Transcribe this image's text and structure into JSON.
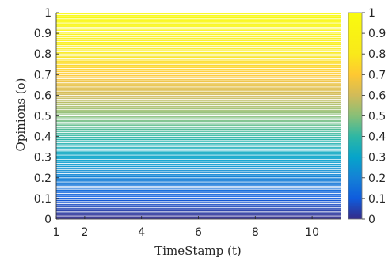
{
  "chart_data": {
    "type": "line",
    "title": "",
    "xlabel": "TimeStamp (t)",
    "ylabel": "Opinions (o)",
    "xlim": [
      1,
      11
    ],
    "ylim": [
      0,
      1
    ],
    "xticks": [
      1,
      2,
      4,
      6,
      8,
      10
    ],
    "yticks": [
      0,
      0.1,
      0.2,
      0.3,
      0.4,
      0.5,
      0.6,
      0.7,
      0.8,
      0.9,
      1
    ],
    "colorbar": {
      "range": [
        0,
        1
      ],
      "ticks": [
        0,
        0.1,
        0.2,
        0.3,
        0.4,
        0.5,
        0.6,
        0.7,
        0.8,
        0.9,
        1
      ],
      "colormap": "parula"
    },
    "line_color": "#ffffff",
    "x": [
      1,
      2,
      3,
      4,
      5,
      6,
      7,
      8,
      9,
      10,
      11
    ],
    "opinion_levels": [
      0.005,
      0.015,
      0.025,
      0.035,
      0.045,
      0.055,
      0.065,
      0.075,
      0.085,
      0.095,
      0.105,
      0.115,
      0.125,
      0.135,
      0.145,
      0.152,
      0.16,
      0.17,
      0.18,
      0.19,
      0.2,
      0.21,
      0.22,
      0.23,
      0.24,
      0.25,
      0.26,
      0.27,
      0.28,
      0.29,
      0.3,
      0.31,
      0.32,
      0.33,
      0.34,
      0.35,
      0.36,
      0.37,
      0.38,
      0.39,
      0.4,
      0.41,
      0.42,
      0.43,
      0.44,
      0.45,
      0.46,
      0.47,
      0.48,
      0.49,
      0.5,
      0.51,
      0.52,
      0.53,
      0.54,
      0.55,
      0.56,
      0.57,
      0.58,
      0.59,
      0.6,
      0.61,
      0.62,
      0.63,
      0.64,
      0.65,
      0.66,
      0.67,
      0.68,
      0.69,
      0.7,
      0.71,
      0.72,
      0.73,
      0.74,
      0.75,
      0.76,
      0.77,
      0.78,
      0.79,
      0.8,
      0.81,
      0.82,
      0.83,
      0.84,
      0.85,
      0.86,
      0.87,
      0.88,
      0.89,
      0.9,
      0.91,
      0.92,
      0.93,
      0.94,
      0.95,
      0.96,
      0.97,
      0.98,
      0.99,
      1.0
    ]
  }
}
